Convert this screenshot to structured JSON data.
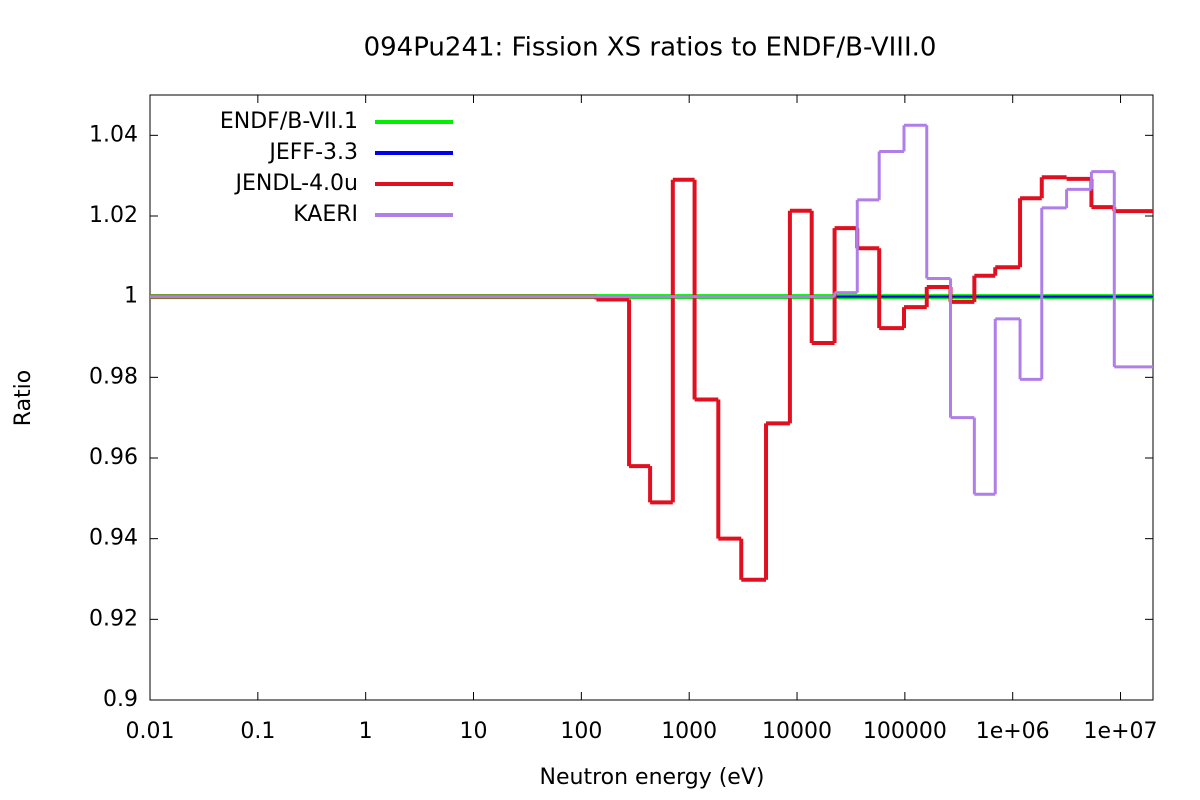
{
  "chart_data": {
    "type": "step",
    "title": "094Pu241: Fission XS ratios to ENDF/B-VIII.0",
    "xlabel": "Neutron energy (eV)",
    "ylabel": "Ratio",
    "xscale": "log",
    "legend": "upper left",
    "xlim": [
      0.01,
      20000000
    ],
    "ylim": [
      0.9,
      1.05
    ],
    "xticks": [
      0.01,
      0.1,
      1,
      10,
      100,
      1000,
      10000,
      100000,
      {
        "value": 1000000,
        "label": "1e+06"
      },
      {
        "value": 10000000,
        "label": "1e+07"
      }
    ],
    "yticks": [
      0.9,
      0.92,
      0.94,
      0.96,
      0.98,
      1,
      1.02,
      1.04
    ],
    "series": [
      {
        "name": "ENDF/B-VII.1",
        "color": "#00ee00",
        "x": [
          0.01
        ],
        "values": [
          1
        ]
      },
      {
        "name": "JEFF-3.3",
        "color": "#0000ee",
        "x": [
          0.01
        ],
        "values": [
          1
        ]
      },
      {
        "name": "JENDL-4.0u",
        "color": "#e01020",
        "x": [
          0.01,
          138,
          277,
          434,
          705,
          1122,
          1862,
          3040,
          5160,
          8590,
          13680,
          22300,
          36200,
          57800,
          98200,
          159600,
          265000,
          441000,
          689000,
          1170000,
          1860000,
          3160000,
          5370000,
          8750000
        ],
        "values": [
          1,
          0.9993,
          0.958,
          0.949,
          1.029,
          0.9745,
          0.94,
          0.9298,
          0.9686,
          1.0213,
          0.9885,
          1.017,
          1.012,
          0.9922,
          0.9974,
          1.0024,
          0.9987,
          1.0052,
          1.0073,
          1.0244,
          1.0296,
          1.0292,
          1.0222,
          1.0212
        ]
      },
      {
        "name": "KAERI",
        "color": "#b07ee8",
        "x": [
          0.01,
          22300,
          36200,
          57800,
          98200,
          159600,
          265000,
          441000,
          689000,
          1170000,
          1860000,
          3160000,
          5370000,
          8750000
        ],
        "values": [
          1,
          1.001,
          1.024,
          1.036,
          1.0425,
          1.0045,
          0.97,
          0.951,
          0.9945,
          0.9795,
          1.022,
          1.0266,
          1.031,
          0.9826
        ]
      }
    ]
  }
}
